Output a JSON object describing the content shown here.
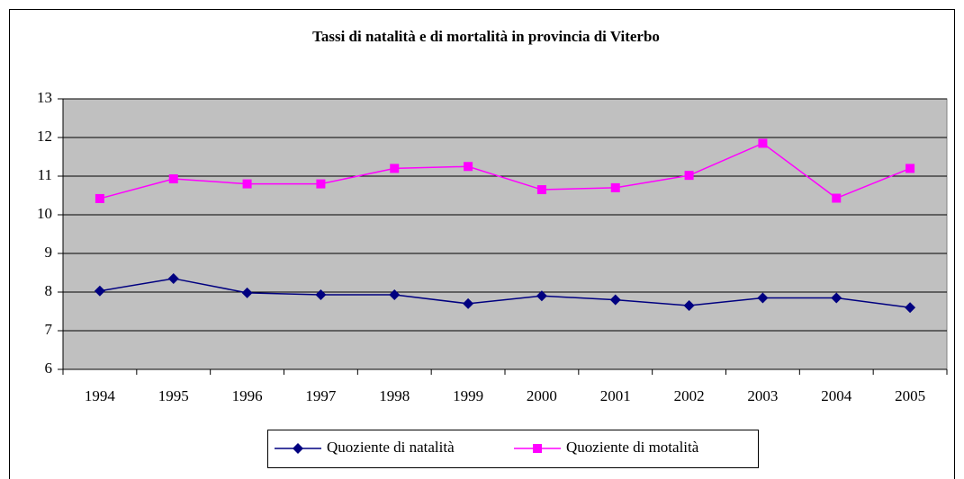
{
  "chart_data": {
    "type": "line",
    "title": "Tassi di natalità e di mortalità in provincia di Viterbo",
    "categories": [
      "1994",
      "1995",
      "1996",
      "1997",
      "1998",
      "1999",
      "2000",
      "2001",
      "2002",
      "2003",
      "2004",
      "2005"
    ],
    "series": [
      {
        "name": "Quoziente di natalità",
        "color": "#000080",
        "marker": "diamond",
        "values": [
          8.03,
          8.35,
          7.98,
          7.93,
          7.93,
          7.7,
          7.9,
          7.8,
          7.65,
          7.85,
          7.85,
          7.6
        ]
      },
      {
        "name": "Quoziente di motalità",
        "color": "#ff00ff",
        "marker": "square",
        "values": [
          10.42,
          10.93,
          10.8,
          10.8,
          11.2,
          11.25,
          10.65,
          10.7,
          11.02,
          11.85,
          10.43,
          11.2
        ]
      }
    ],
    "ylim": [
      6,
      13
    ],
    "yticks": [
      6,
      7,
      8,
      9,
      10,
      11,
      12,
      13
    ],
    "grid": true,
    "legend": "bottom"
  }
}
